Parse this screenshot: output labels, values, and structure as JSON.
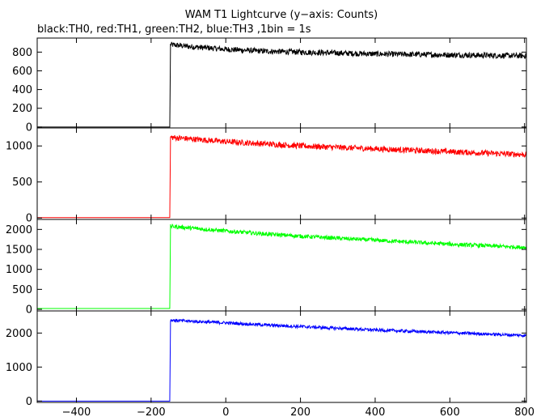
{
  "chart_data": {
    "type": "line",
    "title": "WAM T1 Lightcurve (y−axis: Counts)",
    "subtitle": "black:TH0, red:TH1, green:TH2, blue:TH3 ,1bin = 1s",
    "xlim": [
      -505,
      805
    ],
    "x_ticks": [
      -400,
      -200,
      0,
      200,
      400,
      600,
      800
    ],
    "x_tick_labels": [
      "−400",
      "−200",
      "0",
      "200",
      "400",
      "600",
      "800"
    ],
    "grid": false,
    "panels": [
      {
        "name": "TH0",
        "color": "#000000",
        "ylim": [
          -10,
          950
        ],
        "y_ticks": [
          0,
          200,
          400,
          600,
          800
        ],
        "y_tick_labels": [
          "0",
          "200",
          "400",
          "600",
          "800"
        ],
        "x": [
          -505,
          -150,
          -148,
          -100,
          0,
          100,
          200,
          300,
          400,
          500,
          600,
          700,
          800
        ],
        "y": [
          0,
          0,
          880,
          860,
          830,
          810,
          800,
          790,
          780,
          775,
          770,
          765,
          760
        ],
        "noise": 30
      },
      {
        "name": "TH1",
        "color": "#ff0000",
        "ylim": [
          -20,
          1250
        ],
        "y_ticks": [
          0,
          500,
          1000
        ],
        "y_tick_labels": [
          "0",
          "500",
          "1000"
        ],
        "x": [
          -505,
          -150,
          -148,
          -100,
          0,
          100,
          200,
          300,
          400,
          500,
          600,
          700,
          800
        ],
        "y": [
          5,
          5,
          1120,
          1100,
          1060,
          1030,
          1000,
          980,
          960,
          940,
          920,
          900,
          880
        ],
        "noise": 40
      },
      {
        "name": "TH2",
        "color": "#00ff00",
        "ylim": [
          -40,
          2250
        ],
        "y_ticks": [
          0,
          500,
          1000,
          1500,
          2000
        ],
        "y_tick_labels": [
          "0",
          "500",
          "1000",
          "1500",
          "2000"
        ],
        "x": [
          -505,
          -150,
          -148,
          -100,
          0,
          100,
          200,
          300,
          400,
          500,
          600,
          700,
          800
        ],
        "y": [
          20,
          20,
          2080,
          2040,
          1960,
          1890,
          1830,
          1780,
          1730,
          1680,
          1630,
          1590,
          1550
        ],
        "noise": 50
      },
      {
        "name": "TH3",
        "color": "#0000ff",
        "ylim": [
          -40,
          2650
        ],
        "y_ticks": [
          0,
          1000,
          2000
        ],
        "y_tick_labels": [
          "0",
          "1000",
          "2000"
        ],
        "x": [
          -505,
          -150,
          -148,
          -100,
          0,
          100,
          200,
          300,
          400,
          500,
          600,
          700,
          800
        ],
        "y": [
          0,
          0,
          2380,
          2350,
          2300,
          2240,
          2190,
          2140,
          2090,
          2050,
          2010,
          1970,
          1930
        ],
        "noise": 45
      }
    ]
  }
}
